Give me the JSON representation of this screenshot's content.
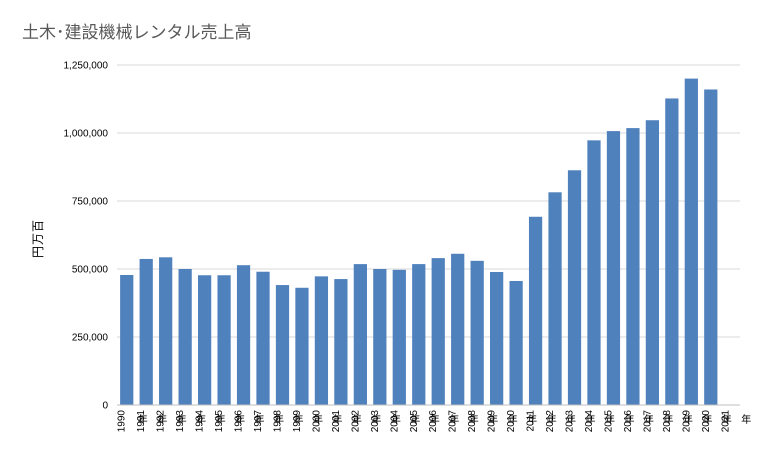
{
  "chart_data": {
    "type": "bar",
    "title": "土木･建設機械レンタル売上高",
    "ylabel": "円万百",
    "xlabel": "",
    "ylim": [
      0,
      1250000
    ],
    "yticks": [
      0,
      250000,
      500000,
      750000,
      1000000,
      1250000
    ],
    "ytick_labels": [
      "0",
      "250,000",
      "500,000",
      "750,000",
      "1,000,000",
      "1,250,000"
    ],
    "grid": true,
    "color": "#4f81bd",
    "categories": [
      "1990",
      "1991",
      "1992",
      "1993",
      "1994",
      "1995",
      "1996",
      "1997",
      "1998",
      "1999",
      "2000",
      "2001",
      "2002",
      "2003",
      "2004",
      "2005",
      "2006",
      "2007",
      "2008",
      "2009",
      "2010",
      "2011",
      "2012",
      "2013",
      "2014",
      "2015",
      "2016",
      "2017",
      "2018",
      "2019",
      "2020",
      "2021"
    ],
    "category_suffix": "年",
    "values": [
      478000,
      537000,
      543000,
      500000,
      477000,
      477000,
      514000,
      490000,
      441000,
      431000,
      473000,
      463000,
      518000,
      500000,
      497000,
      518000,
      540000,
      556000,
      530000,
      489000,
      456000,
      692000,
      782000,
      863000,
      973000,
      1007000,
      1018000,
      1047000,
      1127000,
      1200000,
      1160000,
      null
    ]
  }
}
